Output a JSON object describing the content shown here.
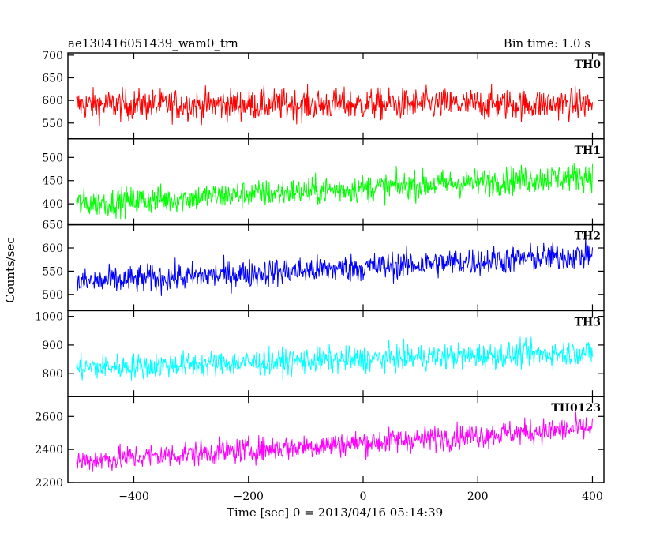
{
  "header": {
    "title": "ae130416051439_wam0_trn",
    "bin_time": "Bin time: 1.0 s"
  },
  "chart_data": {
    "type": "line",
    "xlabel": "Time [sec] 0 = 2013/04/16 05:14:39",
    "ylabel": "Counts/sec",
    "xlim": [
      -515,
      420
    ],
    "x_ticks": [
      -400,
      -200,
      0,
      200,
      400
    ],
    "x_tick_labels": [
      "−400",
      "−200",
      "0",
      "200",
      "400"
    ],
    "x_range_data": [
      -500,
      400
    ],
    "grid": false,
    "panels": [
      {
        "name": "TH0",
        "color": "#ff0000",
        "ylim": [
          515,
          705
        ],
        "y_ticks": [
          550,
          600,
          650,
          700
        ],
        "y_tick_labels": [
          "550",
          "600",
          "650",
          "700"
        ],
        "trend_start": 590,
        "trend_end": 592,
        "noise": 32
      },
      {
        "name": "TH1",
        "color": "#00ff00",
        "ylim": [
          355,
          540
        ],
        "y_ticks": [
          400,
          450,
          500
        ],
        "y_tick_labels": [
          "400",
          "450",
          "500"
        ],
        "trend_start": 400,
        "trend_end": 460,
        "noise": 28
      },
      {
        "name": "TH2",
        "color": "#0000ff",
        "ylim": [
          465,
          650
        ],
        "y_ticks": [
          500,
          550,
          600,
          650
        ],
        "y_tick_labels": [
          "500",
          "550",
          "600",
          "650"
        ],
        "trend_start": 525,
        "trend_end": 585,
        "noise": 28
      },
      {
        "name": "TH3",
        "color": "#00ffff",
        "ylim": [
          720,
          1020
        ],
        "y_ticks": [
          800,
          900,
          1000
        ],
        "y_tick_labels": [
          "800",
          "900",
          "1000"
        ],
        "trend_start": 820,
        "trend_end": 875,
        "noise": 42
      },
      {
        "name": "TH0123",
        "color": "#ff00ff",
        "ylim": [
          2200,
          2720
        ],
        "y_ticks": [
          2200,
          2400,
          2600
        ],
        "y_tick_labels": [
          "2200",
          "2400",
          "2600"
        ],
        "trend_start": 2330,
        "trend_end": 2530,
        "noise": 70
      }
    ]
  }
}
